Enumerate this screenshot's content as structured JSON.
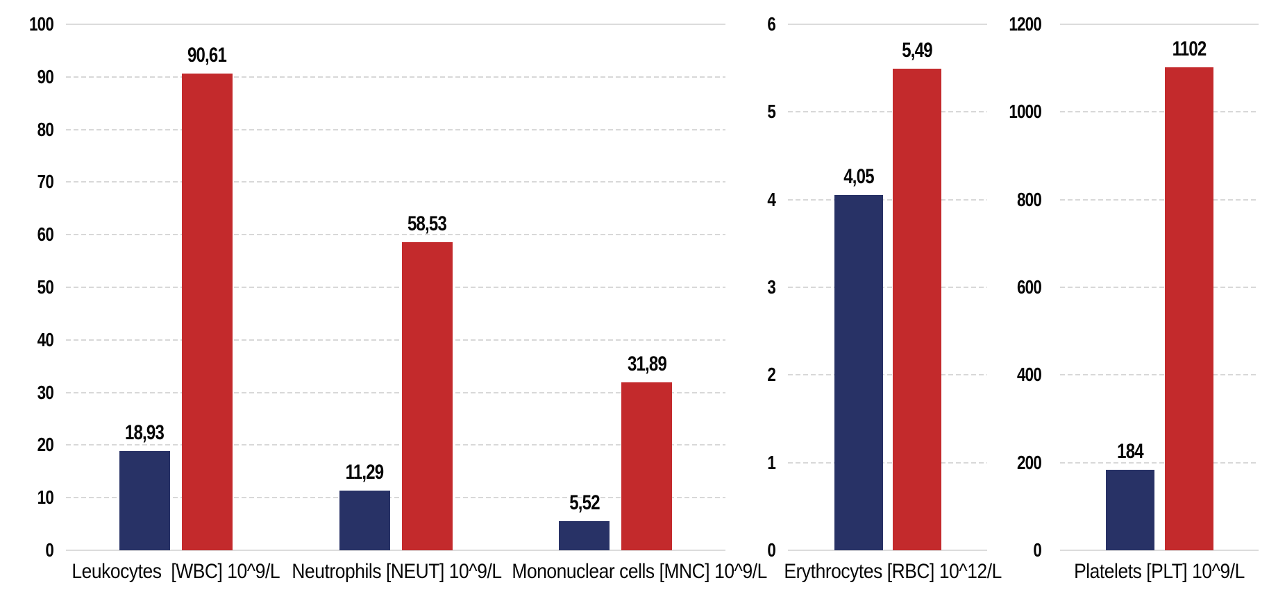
{
  "colors": {
    "series_blue": "#283266",
    "series_red": "#C32A2C",
    "gridline": "#D8D8D8",
    "text": "#050505",
    "background": "#FFFFFF"
  },
  "number_format": "comma-decimal",
  "chart_data": [
    {
      "type": "bar",
      "name": "leukocyte-panel",
      "title": "",
      "categories": [
        "Leukocytes  [WBC] 10^9/L",
        "Neutrophils [NEUT] 10^9/L",
        "Mononuclear cells [MNC] 10^9/L"
      ],
      "series": [
        {
          "name": "blue-series",
          "color": "#283266",
          "values": [
            18.93,
            11.29,
            5.52
          ],
          "value_labels": [
            "18,93",
            "11,29",
            "5,52"
          ]
        },
        {
          "name": "red-series",
          "color": "#C32A2C",
          "values": [
            90.61,
            58.53,
            31.89
          ],
          "value_labels": [
            "90,61",
            "58,53",
            "31,89"
          ]
        }
      ],
      "ylim": [
        0,
        100
      ],
      "yticks": [
        0,
        10,
        20,
        30,
        40,
        50,
        60,
        70,
        80,
        90,
        100
      ],
      "ytick_labels": [
        "0",
        "10",
        "20",
        "30",
        "40",
        "50",
        "60",
        "70",
        "80",
        "90",
        "100"
      ],
      "grid": true,
      "legend": "none"
    },
    {
      "type": "bar",
      "name": "erythrocyte-panel",
      "title": "",
      "categories": [
        "Erythrocytes [RBC] 10^12/L"
      ],
      "series": [
        {
          "name": "blue-series",
          "color": "#283266",
          "values": [
            4.05
          ],
          "value_labels": [
            "4,05"
          ]
        },
        {
          "name": "red-series",
          "color": "#C32A2C",
          "values": [
            5.49
          ],
          "value_labels": [
            "5,49"
          ]
        }
      ],
      "ylim": [
        0,
        6
      ],
      "yticks": [
        0,
        1,
        2,
        3,
        4,
        5,
        6
      ],
      "ytick_labels": [
        "0",
        "1",
        "2",
        "3",
        "4",
        "5",
        "6"
      ],
      "grid": true,
      "legend": "none"
    },
    {
      "type": "bar",
      "name": "platelet-panel",
      "title": "",
      "categories": [
        "Platelets [PLT] 10^9/L"
      ],
      "series": [
        {
          "name": "blue-series",
          "color": "#283266",
          "values": [
            184
          ],
          "value_labels": [
            "184"
          ]
        },
        {
          "name": "red-series",
          "color": "#C32A2C",
          "values": [
            1102
          ],
          "value_labels": [
            "1102"
          ]
        }
      ],
      "ylim": [
        0,
        1200
      ],
      "yticks": [
        0,
        200,
        400,
        600,
        800,
        1000,
        1200
      ],
      "ytick_labels": [
        "0",
        "200",
        "400",
        "600",
        "800",
        "1000",
        "1200"
      ],
      "grid": true,
      "legend": "none"
    }
  ]
}
